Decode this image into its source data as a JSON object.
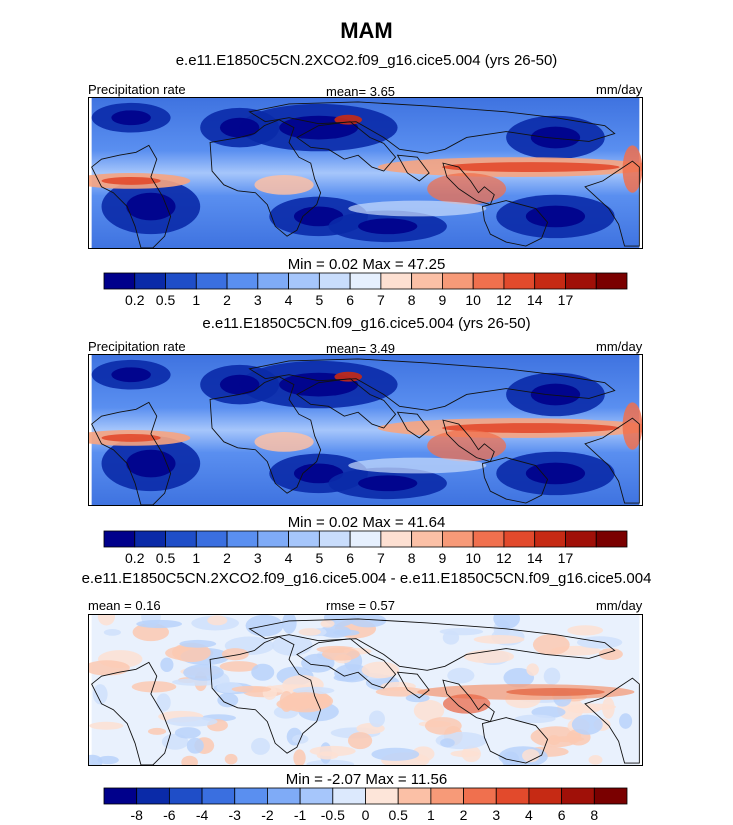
{
  "title": "MAM",
  "panels": [
    {
      "subtitle": "e.e11.E1850C5CN.2XCO2.f09_g16.cice5.004 (yrs 26-50)",
      "left_label": "Precipitation rate",
      "center_label": "mean=   3.65",
      "right_label": "mm/day",
      "minmax": "Min =   0.02 Max =  47.25",
      "colorbar": "precip"
    },
    {
      "subtitle": "e.e11.E1850C5CN.f09_g16.cice5.004 (yrs 26-50)",
      "left_label": "Precipitation rate",
      "center_label": "mean=   3.49",
      "right_label": "mm/day",
      "minmax": "Min =   0.02 Max =  41.64",
      "colorbar": "precip"
    },
    {
      "subtitle": "e.e11.E1850C5CN.2XCO2.f09_g16.cice5.004 - e.e11.E1850C5CN.f09_g16.cice5.004",
      "left_label": "mean =   0.16",
      "center_label": "rmse =   0.57",
      "right_label": "mm/day",
      "minmax": "Min =  -2.07 Max =  11.56",
      "colorbar": "diff"
    }
  ],
  "chart_data": [
    {
      "type": "heatmap",
      "title": "MAM",
      "subtitle": "e.e11.E1850C5CN.2XCO2.f09_g16.cice5.004 (yrs 26-50)",
      "variable": "Precipitation rate",
      "units": "mm/day",
      "mean": 3.65,
      "min": 0.02,
      "max": 47.25,
      "colorbar_levels": [
        "0.2",
        "0.5",
        "1",
        "2",
        "3",
        "4",
        "5",
        "6",
        "7",
        "8",
        "9",
        "10",
        "12",
        "14",
        "17"
      ],
      "colors": [
        "#00008b",
        "#0a2aa8",
        "#1f4ec8",
        "#3a6fe0",
        "#5a8ff0",
        "#7fabf7",
        "#a6c6fb",
        "#c9ddfc",
        "#e6f0fe",
        "#fde0d2",
        "#fbc0a6",
        "#f79a78",
        "#f0704e",
        "#e24a2c",
        "#c62a14",
        "#a01008",
        "#7a0000"
      ]
    },
    {
      "type": "heatmap",
      "subtitle": "e.e11.E1850C5CN.f09_g16.cice5.004 (yrs 26-50)",
      "variable": "Precipitation rate",
      "units": "mm/day",
      "mean": 3.49,
      "min": 0.02,
      "max": 41.64,
      "colorbar_levels": [
        "0.2",
        "0.5",
        "1",
        "2",
        "3",
        "4",
        "5",
        "6",
        "7",
        "8",
        "9",
        "10",
        "12",
        "14",
        "17"
      ],
      "colors": [
        "#00008b",
        "#0a2aa8",
        "#1f4ec8",
        "#3a6fe0",
        "#5a8ff0",
        "#7fabf7",
        "#a6c6fb",
        "#c9ddfc",
        "#e6f0fe",
        "#fde0d2",
        "#fbc0a6",
        "#f79a78",
        "#f0704e",
        "#e24a2c",
        "#c62a14",
        "#a01008",
        "#7a0000"
      ]
    },
    {
      "type": "heatmap",
      "subtitle": "e.e11.E1850C5CN.2XCO2.f09_g16.cice5.004 - e.e11.E1850C5CN.f09_g16.cice5.004",
      "units": "mm/day",
      "mean": 0.16,
      "rmse": 0.57,
      "min": -2.07,
      "max": 11.56,
      "colorbar_levels": [
        "-8",
        "-6",
        "-4",
        "-3",
        "-2",
        "-1",
        "-0.5",
        "0",
        "0.5",
        "1",
        "2",
        "3",
        "4",
        "6",
        "8"
      ],
      "colors": [
        "#00008b",
        "#0a2aa8",
        "#1f4ec8",
        "#3a6fe0",
        "#5a8ff0",
        "#7fabf7",
        "#a6c6fb",
        "#dce9fd",
        "#fde5d9",
        "#fbc0a6",
        "#f79a78",
        "#f0704e",
        "#e24a2c",
        "#c62a14",
        "#a01008",
        "#7a0000"
      ]
    }
  ]
}
